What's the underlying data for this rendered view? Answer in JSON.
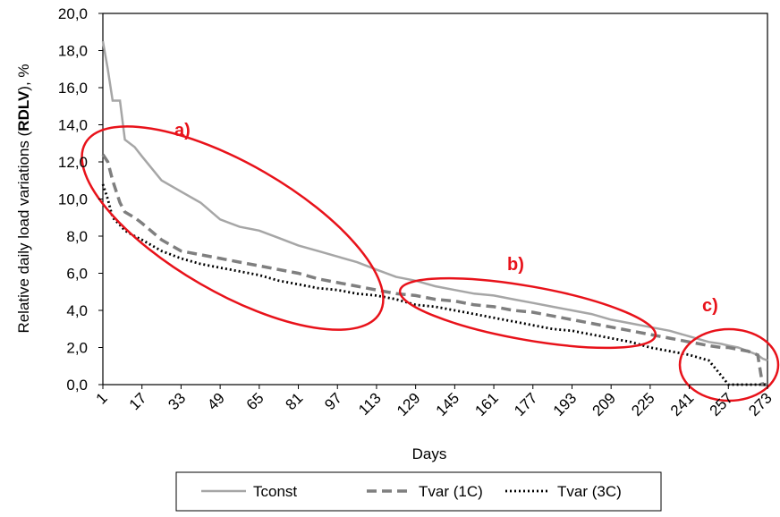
{
  "chart_data": {
    "type": "line",
    "x_label": "Days",
    "y_label": [
      "Relative daily load variations (",
      "RDLV",
      "), %"
    ],
    "annotations": [
      "a)",
      "b)",
      "c)"
    ],
    "x": [
      1,
      3,
      5,
      8,
      10,
      14,
      17,
      25,
      33,
      41,
      49,
      57,
      65,
      73,
      81,
      89,
      97,
      105,
      113,
      121,
      129,
      137,
      145,
      153,
      161,
      169,
      177,
      185,
      193,
      201,
      209,
      217,
      225,
      233,
      241,
      249,
      254,
      257,
      261,
      265,
      269,
      271,
      273
    ],
    "xlim": [
      1,
      273
    ],
    "xticks": [
      1,
      17,
      33,
      49,
      65,
      81,
      97,
      113,
      129,
      145,
      161,
      177,
      193,
      209,
      225,
      241,
      257,
      273
    ],
    "ylim": [
      0,
      20
    ],
    "yticks": [
      {
        "value": 0,
        "label": "0,0"
      },
      {
        "value": 2,
        "label": "2,0"
      },
      {
        "value": 4,
        "label": "4,0"
      },
      {
        "value": 6,
        "label": "6,0"
      },
      {
        "value": 8,
        "label": "8,0"
      },
      {
        "value": 10,
        "label": "10,0"
      },
      {
        "value": 12,
        "label": "12,0"
      },
      {
        "value": 14,
        "label": "14,0"
      },
      {
        "value": 16,
        "label": "16,0"
      },
      {
        "value": 18,
        "label": "18,0"
      },
      {
        "value": 20,
        "label": "20,0"
      }
    ],
    "series": [
      {
        "name": "Tconst",
        "color": "#a6a6a6",
        "dash": "solid",
        "values": [
          18.5,
          17.0,
          15.3,
          15.3,
          13.2,
          12.8,
          12.3,
          11.0,
          10.4,
          9.8,
          8.9,
          8.5,
          8.3,
          7.9,
          7.5,
          7.2,
          6.9,
          6.6,
          6.2,
          5.8,
          5.6,
          5.3,
          5.1,
          4.9,
          4.8,
          4.6,
          4.4,
          4.2,
          4.0,
          3.8,
          3.5,
          3.3,
          3.1,
          2.9,
          2.6,
          2.3,
          2.2,
          2.1,
          2.0,
          1.8,
          1.6,
          1.4,
          1.3
        ]
      },
      {
        "name": "Tvar (1C)",
        "color": "#7f7f7f",
        "dash": "dashed",
        "values": [
          12.4,
          12.0,
          11.0,
          9.8,
          9.3,
          9.0,
          8.7,
          7.8,
          7.2,
          7.0,
          6.8,
          6.6,
          6.4,
          6.2,
          6.0,
          5.7,
          5.5,
          5.3,
          5.1,
          4.9,
          4.8,
          4.6,
          4.5,
          4.3,
          4.2,
          4.0,
          3.9,
          3.7,
          3.5,
          3.3,
          3.1,
          2.9,
          2.7,
          2.5,
          2.3,
          2.1,
          2.0,
          2.0,
          1.9,
          1.8,
          1.6,
          0.0,
          0.0
        ]
      },
      {
        "name": "Tvar (3C)",
        "color": "#000000",
        "dash": "dotted",
        "values": [
          10.8,
          10.0,
          9.0,
          8.6,
          8.3,
          8.0,
          7.8,
          7.2,
          6.8,
          6.5,
          6.3,
          6.1,
          5.9,
          5.6,
          5.4,
          5.2,
          5.1,
          4.9,
          4.8,
          4.6,
          4.3,
          4.2,
          4.0,
          3.8,
          3.6,
          3.4,
          3.2,
          3.0,
          2.9,
          2.7,
          2.5,
          2.3,
          2.0,
          1.8,
          1.6,
          1.3,
          0.5,
          0.0,
          0.0,
          0.0,
          0.0,
          0.0,
          0.0
        ]
      }
    ]
  }
}
